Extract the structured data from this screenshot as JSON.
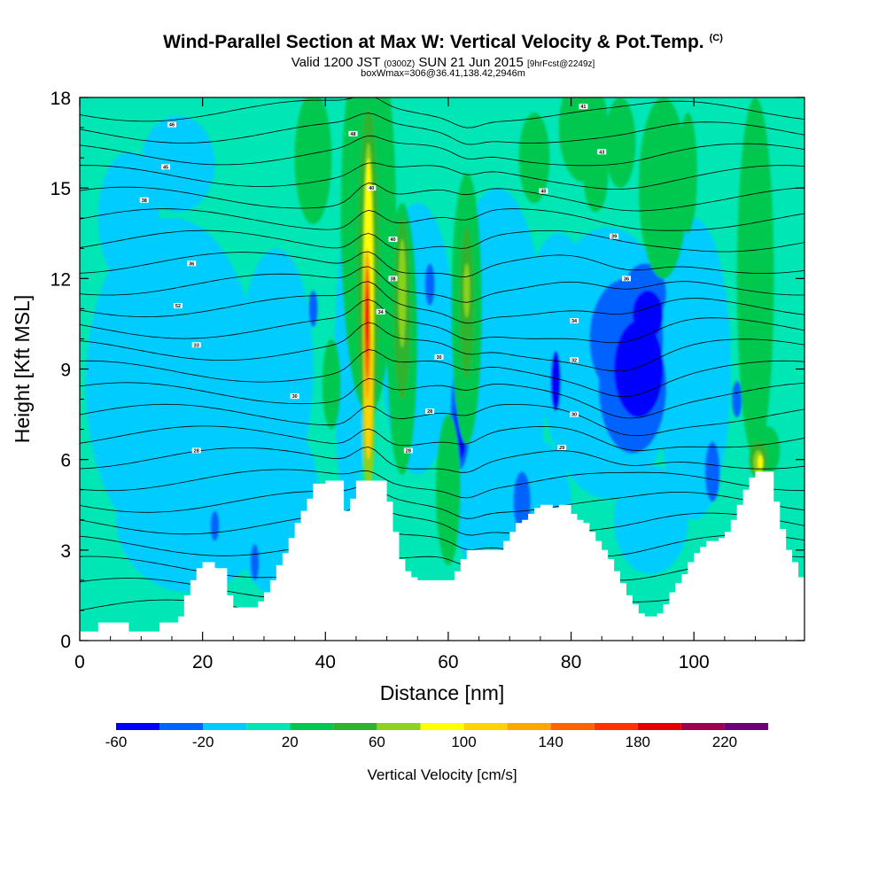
{
  "header": {
    "title": "Wind-Parallel Section at Max W: Vertical Velocity & Pot.Temp.",
    "copyright": "(C)",
    "subtitle_main": "Valid 1200 JST",
    "subtitle_utc": "(0300Z)",
    "subtitle_date": "SUN 21 Jun 2015",
    "subtitle_fcst": "[9hrFcst@2249z]",
    "boxline": "boxWmax=306@36.41,138.42,2946m"
  },
  "chart_data": {
    "type": "heatmap",
    "xlabel": "Distance [nm]",
    "ylabel": "Height [Kft MSL]",
    "xlim": [
      0,
      118
    ],
    "ylim": [
      0,
      18
    ],
    "xticks": [
      0,
      20,
      40,
      60,
      80,
      100
    ],
    "yticks": [
      0,
      3,
      6,
      9,
      12,
      15,
      18
    ],
    "colorbar": {
      "label": "Vertical Velocity [cm/s]",
      "levels": [
        -60,
        -40,
        -20,
        0,
        20,
        40,
        60,
        80,
        100,
        120,
        140,
        160,
        180,
        200,
        220,
        240
      ],
      "ticks": [
        -60,
        -20,
        20,
        60,
        100,
        140,
        180,
        220
      ],
      "colors": [
        "#0000ff",
        "#0064ff",
        "#00ccff",
        "#00e6b4",
        "#00c850",
        "#2db42d",
        "#8cd21e",
        "#ffff00",
        "#ffd200",
        "#ffa500",
        "#ff6400",
        "#ff3200",
        "#e60000",
        "#a00050",
        "#6e0078"
      ]
    },
    "background_class_color": "#00e6b4",
    "terrain": {
      "color": "#ffffff",
      "x": [
        0,
        3,
        4,
        5,
        8,
        9,
        12,
        13,
        16,
        17,
        18,
        19,
        20,
        21,
        22,
        24,
        25,
        28,
        29,
        30,
        31,
        32,
        33,
        34,
        35,
        36,
        37,
        38,
        40,
        42,
        43,
        44,
        45,
        46,
        47,
        48,
        49,
        50,
        51,
        52,
        53,
        54,
        55,
        56,
        57,
        60,
        61,
        62,
        63,
        64,
        65,
        66,
        67,
        68,
        69,
        70,
        71,
        72,
        73,
        74,
        75,
        76,
        77,
        78,
        79,
        80,
        81,
        82,
        83,
        84,
        85,
        86,
        87,
        88,
        89,
        90,
        91,
        92,
        93,
        94,
        95,
        96,
        97,
        98,
        99,
        100,
        101,
        102,
        103,
        104,
        105,
        106,
        107,
        108,
        109,
        110,
        111,
        112,
        113,
        114,
        115,
        116,
        117,
        118
      ],
      "height_kft": [
        0.3,
        0.6,
        0.6,
        0.6,
        0.3,
        0.3,
        0.3,
        0.6,
        0.8,
        1.5,
        2.0,
        2.4,
        2.6,
        2.6,
        2.4,
        1.5,
        1.1,
        1.1,
        1.3,
        1.6,
        2.0,
        2.5,
        2.9,
        3.4,
        3.9,
        4.3,
        4.7,
        5.2,
        5.3,
        5.3,
        4.3,
        4.7,
        5.3,
        5.3,
        5.3,
        5.3,
        5.3,
        4.6,
        3.6,
        2.7,
        2.3,
        2.1,
        2.0,
        2.0,
        2.0,
        2.0,
        2.3,
        2.7,
        3.0,
        3.0,
        3.0,
        3.0,
        3.0,
        3.0,
        3.3,
        3.6,
        3.9,
        4.0,
        4.2,
        4.4,
        4.5,
        4.5,
        4.4,
        4.5,
        4.5,
        4.2,
        4.0,
        3.9,
        3.6,
        3.3,
        3.0,
        2.7,
        2.3,
        1.9,
        1.5,
        1.2,
        0.9,
        0.8,
        0.8,
        0.9,
        1.2,
        1.6,
        1.9,
        2.2,
        2.6,
        2.9,
        3.1,
        3.3,
        3.3,
        3.4,
        3.6,
        4.0,
        4.5,
        5.0,
        5.4,
        5.6,
        5.6,
        5.6,
        4.6,
        3.7,
        3.0,
        2.6,
        2.1,
        2.0
      ],
      "note": "terrain profile (white area) in Kft MSL"
    },
    "contour_labels": {
      "name": "Potential temperature (C)",
      "items": [
        {
          "x": 15.0,
          "y": 17.1,
          "text": "46"
        },
        {
          "x": 14.0,
          "y": 15.7,
          "text": "45"
        },
        {
          "x": 10.5,
          "y": 14.6,
          "text": "38"
        },
        {
          "x": 18.2,
          "y": 12.5,
          "text": "36"
        },
        {
          "x": 16.0,
          "y": 11.1,
          "text": "52"
        },
        {
          "x": 19.0,
          "y": 9.8,
          "text": "33"
        },
        {
          "x": 35.0,
          "y": 8.1,
          "text": "30"
        },
        {
          "x": 19.0,
          "y": 6.3,
          "text": "28"
        },
        {
          "x": 44.5,
          "y": 16.8,
          "text": "48"
        },
        {
          "x": 47.5,
          "y": 15.0,
          "text": "40"
        },
        {
          "x": 51.0,
          "y": 13.3,
          "text": "40"
        },
        {
          "x": 51.0,
          "y": 12.0,
          "text": "38"
        },
        {
          "x": 49.0,
          "y": 10.9,
          "text": "34"
        },
        {
          "x": 58.5,
          "y": 9.4,
          "text": "30"
        },
        {
          "x": 57.0,
          "y": 7.6,
          "text": "28"
        },
        {
          "x": 53.5,
          "y": 6.3,
          "text": "28"
        },
        {
          "x": 82.0,
          "y": 17.7,
          "text": "41"
        },
        {
          "x": 85.0,
          "y": 16.2,
          "text": "43"
        },
        {
          "x": 75.5,
          "y": 14.9,
          "text": "40"
        },
        {
          "x": 87.0,
          "y": 13.4,
          "text": "39"
        },
        {
          "x": 89.0,
          "y": 12.0,
          "text": "36"
        },
        {
          "x": 80.5,
          "y": 10.6,
          "text": "34"
        },
        {
          "x": 80.5,
          "y": 9.3,
          "text": "32"
        },
        {
          "x": 80.5,
          "y": 7.5,
          "text": "30"
        },
        {
          "x": 78.5,
          "y": 6.4,
          "text": "29"
        }
      ]
    },
    "features": [
      {
        "kind": "updraft_core",
        "x": 47,
        "y_range": [
          5.2,
          17.5
        ],
        "max_cms": 200
      },
      {
        "kind": "updraft",
        "x": 52.5,
        "y_range": [
          6,
          14
        ],
        "max_cms": 90
      },
      {
        "kind": "updraft",
        "x": 62.5,
        "y_range": [
          7,
          14
        ],
        "max_cms": 60
      },
      {
        "kind": "downdraft",
        "x": 90,
        "y_range": [
          6.5,
          12
        ],
        "min_cms": -60
      },
      {
        "kind": "downdraft",
        "x": 62,
        "y_range": [
          5,
          9
        ],
        "min_cms": -60
      },
      {
        "kind": "updraft",
        "x": 110.5,
        "y_range": [
          5.5,
          6.5
        ],
        "max_cms": 100
      }
    ]
  }
}
